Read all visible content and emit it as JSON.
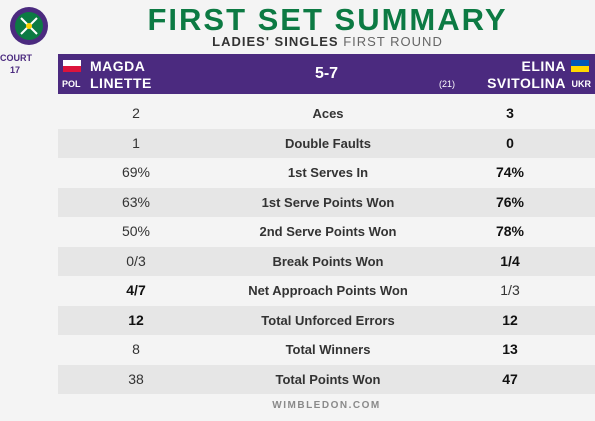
{
  "header": {
    "title": "FIRST SET SUMMARY",
    "subtitle_bold": "LADIES' SINGLES",
    "subtitle_light": "FIRST ROUND",
    "court_line1": "COURT",
    "court_line2": "17"
  },
  "match": {
    "player1_first": "MAGDA",
    "player1_last": "LINETTE",
    "player1_country": "POL",
    "score": "5-7",
    "player2_first": "ELINA",
    "player2_last": "SVITOLINA",
    "player2_seed": "(21)",
    "player2_country": "UKR"
  },
  "colors": {
    "title_green": "#0c7a43",
    "banner_purple": "#4b2a7f"
  },
  "stats": [
    {
      "label": "Aces",
      "p1": "2",
      "p2": "3",
      "winner": "p2"
    },
    {
      "label": "Double Faults",
      "p1": "1",
      "p2": "0",
      "winner": "p2"
    },
    {
      "label": "1st Serves In",
      "p1": "69%",
      "p2": "74%",
      "winner": "p2"
    },
    {
      "label": "1st Serve Points Won",
      "p1": "63%",
      "p2": "76%",
      "winner": "p2"
    },
    {
      "label": "2nd Serve Points Won",
      "p1": "50%",
      "p2": "78%",
      "winner": "p2"
    },
    {
      "label": "Break Points Won",
      "p1": "0/3",
      "p2": "1/4",
      "winner": "p2"
    },
    {
      "label": "Net Approach Points Won",
      "p1": "4/7",
      "p2": "1/3",
      "winner": "p1"
    },
    {
      "label": "Total Unforced Errors",
      "p1": "12",
      "p2": "12",
      "winner": "both"
    },
    {
      "label": "Total Winners",
      "p1": "8",
      "p2": "13",
      "winner": "p2"
    },
    {
      "label": "Total Points Won",
      "p1": "38",
      "p2": "47",
      "winner": "p2"
    }
  ],
  "footer": {
    "site": "WIMBLEDON.COM"
  }
}
